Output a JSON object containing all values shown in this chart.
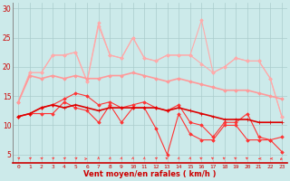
{
  "bg_color": "#cceaea",
  "grid_color": "#aacccc",
  "xlabel": "Vent moyen/en rafales ( km/h )",
  "ylabel_ticks": [
    5,
    10,
    15,
    20,
    25,
    30
  ],
  "ylim": [
    3.5,
    31
  ],
  "xlim": [
    -0.5,
    23.5
  ],
  "series": [
    {
      "color": "#ff3333",
      "alpha": 1.0,
      "linewidth": 0.8,
      "marker": "D",
      "markersize": 1.8,
      "data": [
        11.5,
        12.0,
        12.0,
        12.0,
        14.0,
        13.0,
        12.5,
        10.5,
        13.5,
        10.5,
        13.0,
        13.0,
        9.5,
        5.0,
        12.0,
        8.5,
        7.5,
        7.5,
        10.0,
        10.0,
        7.5,
        7.5,
        7.5,
        5.5
      ]
    },
    {
      "color": "#ff3333",
      "alpha": 1.0,
      "linewidth": 0.8,
      "marker": "D",
      "markersize": 1.8,
      "data": [
        11.5,
        12.0,
        13.0,
        13.5,
        14.5,
        15.5,
        15.0,
        13.5,
        14.0,
        13.0,
        13.5,
        14.0,
        13.0,
        12.5,
        13.5,
        10.5,
        10.0,
        8.0,
        10.5,
        10.5,
        12.0,
        8.0,
        7.5,
        8.0
      ]
    },
    {
      "color": "#dd0000",
      "alpha": 1.0,
      "linewidth": 1.2,
      "marker": "+",
      "markersize": 3.0,
      "data": [
        11.5,
        12.0,
        13.0,
        13.5,
        13.0,
        13.5,
        13.0,
        12.5,
        13.0,
        13.0,
        13.0,
        13.0,
        13.0,
        12.5,
        13.0,
        12.5,
        12.0,
        11.5,
        11.0,
        11.0,
        11.0,
        10.5,
        10.5,
        10.5
      ]
    },
    {
      "color": "#ffaaaa",
      "alpha": 1.0,
      "linewidth": 0.8,
      "marker": "D",
      "markersize": 1.8,
      "data": [
        14.0,
        19.0,
        19.0,
        22.0,
        22.0,
        22.5,
        17.5,
        27.0,
        22.0,
        21.5,
        25.0,
        21.5,
        21.0,
        22.0,
        22.0,
        22.0,
        20.5,
        19.0,
        20.0,
        21.5,
        21.0,
        21.0,
        18.0,
        11.5
      ]
    },
    {
      "color": "#ffaaaa",
      "alpha": 1.0,
      "linewidth": 0.8,
      "marker": "D",
      "markersize": 1.8,
      "data": [
        14.0,
        19.0,
        19.0,
        22.0,
        22.0,
        22.5,
        17.5,
        27.5,
        22.0,
        21.5,
        25.0,
        21.5,
        21.0,
        22.0,
        22.0,
        22.0,
        28.0,
        19.0,
        20.0,
        21.5,
        21.0,
        21.0,
        18.0,
        11.5
      ]
    },
    {
      "color": "#ff9999",
      "alpha": 1.0,
      "linewidth": 1.2,
      "marker": "D",
      "markersize": 1.8,
      "data": [
        14.0,
        18.5,
        18.0,
        18.5,
        18.0,
        18.5,
        18.0,
        18.0,
        18.5,
        18.5,
        19.0,
        18.5,
        18.0,
        17.5,
        18.0,
        17.5,
        17.0,
        16.5,
        16.0,
        16.0,
        16.0,
        15.5,
        15.0,
        14.5
      ]
    }
  ],
  "wind_arrow_angles_deg": [
    45,
    45,
    45,
    45,
    45,
    45,
    80,
    0,
    15,
    15,
    10,
    10,
    45,
    315,
    15,
    10,
    315,
    315,
    315,
    315,
    315,
    270,
    270,
    225
  ]
}
